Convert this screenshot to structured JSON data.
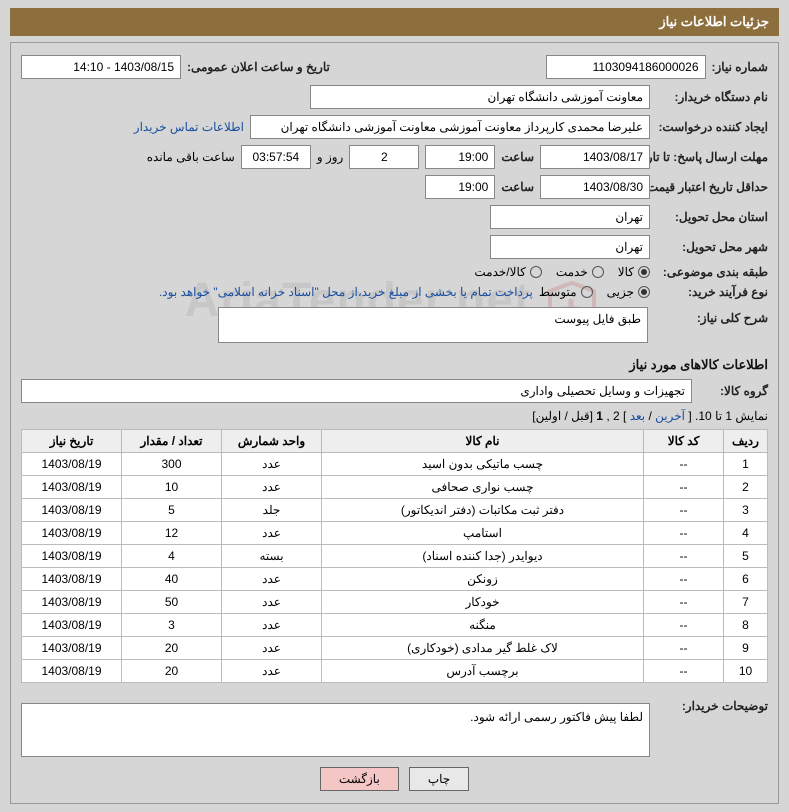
{
  "header": {
    "title": "جزئیات اطلاعات نیاز"
  },
  "watermark": {
    "text": "AriaTender.net"
  },
  "fields": {
    "need_no_label": "شماره نیاز:",
    "need_no": "1103094186000026",
    "announce_label": "تاریخ و ساعت اعلان عمومی:",
    "announce": "1403/08/15 - 14:10",
    "buyer_label": "نام دستگاه خریدار:",
    "buyer": "معاونت آموزشی دانشگاه تهران",
    "requester_label": "ایجاد کننده درخواست:",
    "requester": "علیرضا محمدی کارپرداز معاونت آموزشی معاونت آموزشی دانشگاه تهران",
    "contact_link": "اطلاعات تماس خریدار",
    "resp_deadline_label": "مهلت ارسال پاسخ: تا تاریخ:",
    "resp_date": "1403/08/17",
    "time_label": "ساعت",
    "resp_time": "19:00",
    "days_remain": "2",
    "days_word": "روز و",
    "time_remain": "03:57:54",
    "remain_label": "ساعت باقی مانده",
    "price_valid_label": "حداقل تاریخ اعتبار قیمت: تا تاریخ:",
    "price_date": "1403/08/30",
    "price_time": "19:00",
    "province_label": "استان محل تحویل:",
    "province": "تهران",
    "city_label": "شهر محل تحویل:",
    "city": "تهران",
    "class_label": "طبقه بندی موضوعی:",
    "class_opts": {
      "goods": "کالا",
      "service": "خدمت",
      "both": "کالا/خدمت"
    },
    "class_checked": "goods",
    "proc_label": "نوع فرآیند خرید:",
    "proc_opts": {
      "partial": "جزیی",
      "medium": "متوسط"
    },
    "proc_checked": "partial",
    "proc_note": "پرداخت تمام یا بخشی از مبلغ خرید،از محل \"اسناد خزانه اسلامی\" خواهد بود.",
    "desc_label": "شرح کلی نیاز:",
    "desc_value": "طبق فایل پیوست"
  },
  "items_section": {
    "title": "اطلاعات کالاهای مورد نیاز",
    "group_label": "گروه کالا:",
    "group_value": "تجهیزات و وسایل تحصیلی واداری",
    "paging_text": "نمایش 1 تا 10. [",
    "paging_last": "آخرین",
    "paging_sep": " / ",
    "paging_next": "بعد",
    "paging_mid": "] 2 ,",
    "paging_one": "1",
    "paging_end": " [قبل / اولین]",
    "columns": [
      "ردیف",
      "کد کالا",
      "نام کالا",
      "واحد شمارش",
      "تعداد / مقدار",
      "تاریخ نیاز"
    ],
    "rows": [
      [
        "1",
        "--",
        "چسب ماتیکی بدون اسید",
        "عدد",
        "300",
        "1403/08/19"
      ],
      [
        "2",
        "--",
        "چسب نواری صحافی",
        "عدد",
        "10",
        "1403/08/19"
      ],
      [
        "3",
        "--",
        "دفتر ثبت مکاتبات (دفتر اندیکاتور)",
        "جلد",
        "5",
        "1403/08/19"
      ],
      [
        "4",
        "--",
        "استامپ",
        "عدد",
        "12",
        "1403/08/19"
      ],
      [
        "5",
        "--",
        "دیوایدر (جدا کننده اسناد)",
        "بسته",
        "4",
        "1403/08/19"
      ],
      [
        "6",
        "--",
        "زونکن",
        "عدد",
        "40",
        "1403/08/19"
      ],
      [
        "7",
        "--",
        "خودکار",
        "عدد",
        "50",
        "1403/08/19"
      ],
      [
        "8",
        "--",
        "منگنه",
        "عدد",
        "3",
        "1403/08/19"
      ],
      [
        "9",
        "--",
        "لاک غلط گیر مدادی (خودکاری)",
        "عدد",
        "20",
        "1403/08/19"
      ],
      [
        "10",
        "--",
        "برچسب آدرس",
        "عدد",
        "20",
        "1403/08/19"
      ]
    ]
  },
  "buyer_note": {
    "label": "توضیحات خریدار:",
    "text": "لطفا پیش فاکتور رسمی ارائه شود."
  },
  "buttons": {
    "print": "چاپ",
    "back": "بازگشت"
  },
  "colors": {
    "header_bg": "#8d6e3d",
    "page_bg": "#d6d6d6",
    "field_bg": "#ffffff",
    "border": "#888888",
    "link": "#1a4fa0",
    "btn_back_bg": "#f5c6c6"
  }
}
